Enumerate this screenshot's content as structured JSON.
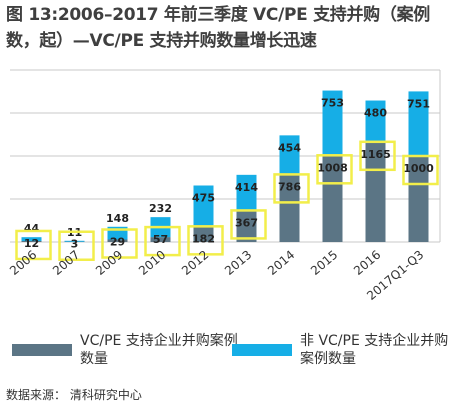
{
  "title": "图 13:2006–2017 年前三季度 VC/PE 支持并购（案例数，起）—VC/PE 支持并购数量增长迅速",
  "colors": {
    "vc": "#5b7585",
    "non_vc": "#16aee6",
    "highlight": "#f2ee4a",
    "grid": "#c8c8c8"
  },
  "chart_data": {
    "type": "bar",
    "stacked": true,
    "categories": [
      "2006",
      "2007",
      "2009",
      "2010",
      "2012",
      "2013",
      "2014",
      "2015",
      "2016",
      "2017Q1-Q3"
    ],
    "series": [
      {
        "name": "VC/PE 支持企业并购案例数量",
        "values": [
          12,
          3,
          29,
          57,
          182,
          367,
          786,
          1008,
          1165,
          1000
        ]
      },
      {
        "name": "非 VC/PE 支持企业并购案例数量",
        "values": [
          44,
          11,
          148,
          232,
          475,
          414,
          454,
          753,
          480,
          751
        ]
      }
    ],
    "ylim": [
      0,
      2000
    ],
    "grid": true,
    "legend_position": "bottom"
  },
  "source": "数据来源：  清科研究中心"
}
